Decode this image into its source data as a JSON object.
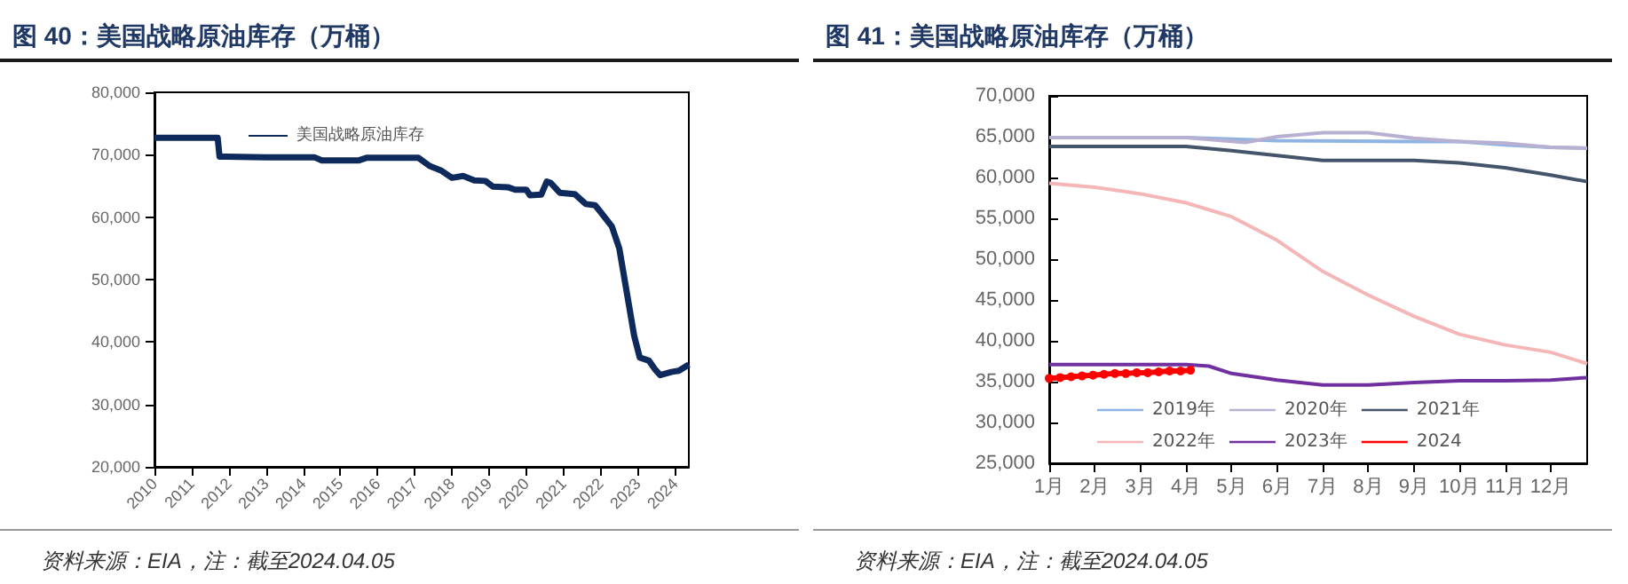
{
  "chart_data": [
    {
      "type": "line",
      "title": "图 40：美国战略原油库存（万桶）",
      "annotations": [
        "资料来源：EIA，注：截至2024.04.05"
      ],
      "xlim": [
        2010,
        2024.37
      ],
      "xticks": [
        2010,
        2011,
        2012,
        2013,
        2014,
        2015,
        2016,
        2017,
        2018,
        2019,
        2020,
        2021,
        2022,
        2023,
        2024
      ],
      "ylim": [
        20000,
        80000
      ],
      "yticks": [
        {
          "value": 20000,
          "label": "20,000"
        },
        {
          "value": 30000,
          "label": "30,000"
        },
        {
          "value": 40000,
          "label": "40,000"
        },
        {
          "value": 50000,
          "label": "50,000"
        },
        {
          "value": 60000,
          "label": "60,000"
        },
        {
          "value": 70000,
          "label": "70,000"
        },
        {
          "value": 80000,
          "label": "80,000"
        }
      ],
      "grid": false,
      "legend": "top",
      "series": [
        {
          "name": "美国战略原油库存",
          "color": "#0e2a5c",
          "x": [
            2010,
            2011.7,
            2011.75,
            2013,
            2014.3,
            2014.5,
            2015.5,
            2015.7,
            2017.1,
            2017.4,
            2017.7,
            2018,
            2018.3,
            2018.6,
            2018.9,
            2019.1,
            2019.5,
            2019.7,
            2020,
            2020.1,
            2020.4,
            2020.55,
            2020.65,
            2020.9,
            2021.3,
            2021.6,
            2021.85,
            2022,
            2022.3,
            2022.5,
            2022.7,
            2022.9,
            2023.05,
            2023.3,
            2023.45,
            2023.6,
            2023.9,
            2024.1,
            2024.37
          ],
          "values": [
            72700,
            72700,
            69700,
            69600,
            69600,
            69100,
            69100,
            69500,
            69500,
            68200,
            67500,
            66300,
            66600,
            65900,
            65800,
            64900,
            64800,
            64400,
            64400,
            63500,
            63600,
            65700,
            65500,
            63900,
            63700,
            62100,
            61900,
            60800,
            58500,
            55000,
            48000,
            41000,
            37500,
            37000,
            35700,
            34700,
            35200,
            35400,
            36400
          ]
        }
      ]
    },
    {
      "type": "line",
      "title": "图 41：美国战略原油库存（万桶）",
      "annotations": [
        "资料来源：EIA，注：截至2024.04.05"
      ],
      "xlim": [
        1,
        12.8
      ],
      "xticks": [
        {
          "value": 1,
          "label": "1月"
        },
        {
          "value": 2,
          "label": "2月"
        },
        {
          "value": 3,
          "label": "3月"
        },
        {
          "value": 4,
          "label": "4月"
        },
        {
          "value": 5,
          "label": "5月"
        },
        {
          "value": 6,
          "label": "6月"
        },
        {
          "value": 7,
          "label": "7月"
        },
        {
          "value": 8,
          "label": "8月"
        },
        {
          "value": 9,
          "label": "9月"
        },
        {
          "value": 10,
          "label": "10月"
        },
        {
          "value": 11,
          "label": "11月"
        },
        {
          "value": 12,
          "label": "12月"
        }
      ],
      "ylim": [
        25000,
        70000
      ],
      "yticks": [
        {
          "value": 25000,
          "label": "25,000"
        },
        {
          "value": 30000,
          "label": "30,000"
        },
        {
          "value": 35000,
          "label": "35,000"
        },
        {
          "value": 40000,
          "label": "40,000"
        },
        {
          "value": 45000,
          "label": "45,000"
        },
        {
          "value": 50000,
          "label": "50,000"
        },
        {
          "value": 55000,
          "label": "55,000"
        },
        {
          "value": 60000,
          "label": "60,000"
        },
        {
          "value": 65000,
          "label": "65,000"
        },
        {
          "value": 70000,
          "label": "70,000"
        }
      ],
      "grid": false,
      "legend": "bottom",
      "series": [
        {
          "name": "2019年",
          "color": "#8fb4e3",
          "marker": "none",
          "x": [
            1,
            4,
            5,
            6,
            9,
            10,
            11,
            12,
            12.8
          ],
          "values": [
            64900,
            64900,
            64700,
            64500,
            64400,
            64400,
            64000,
            63700,
            63600
          ]
        },
        {
          "name": "2020年",
          "color": "#b8b0d0",
          "marker": "none",
          "x": [
            1,
            4,
            5.3,
            6,
            7,
            8,
            9,
            10,
            11,
            12,
            12.8
          ],
          "values": [
            64900,
            64900,
            64300,
            65000,
            65500,
            65500,
            64800,
            64400,
            64200,
            63700,
            63600
          ]
        },
        {
          "name": "2021年",
          "color": "#44546a",
          "marker": "none",
          "x": [
            1,
            4,
            5,
            6,
            7,
            9,
            10,
            11,
            12,
            12.8
          ],
          "values": [
            63800,
            63800,
            63300,
            62700,
            62100,
            62100,
            61800,
            61200,
            60300,
            59500
          ]
        },
        {
          "name": "2022年",
          "color": "#f4b6b6",
          "marker": "none",
          "x": [
            1,
            2,
            3,
            4,
            5,
            6,
            7,
            8,
            9,
            10,
            11,
            12,
            12.8
          ],
          "values": [
            59300,
            58800,
            58000,
            56900,
            55200,
            52300,
            48500,
            45600,
            43000,
            40800,
            39500,
            38600,
            37200
          ]
        },
        {
          "name": "2023年",
          "color": "#7030a0",
          "marker": "none",
          "x": [
            1,
            4,
            4.5,
            5,
            6,
            7,
            8,
            9,
            10,
            11,
            12,
            12.8
          ],
          "values": [
            37100,
            37100,
            36900,
            36000,
            35200,
            34600,
            34600,
            34900,
            35100,
            35100,
            35200,
            35500
          ]
        },
        {
          "name": "2024",
          "color": "#ff0000",
          "marker": "circle",
          "x": [
            1,
            1.24,
            1.48,
            1.72,
            1.96,
            2.2,
            2.44,
            2.68,
            2.92,
            3.16,
            3.4,
            3.64,
            3.88,
            4.1
          ],
          "values": [
            35400,
            35500,
            35600,
            35700,
            35800,
            35900,
            36000,
            36000,
            36100,
            36100,
            36200,
            36300,
            36300,
            36400
          ]
        }
      ]
    }
  ]
}
